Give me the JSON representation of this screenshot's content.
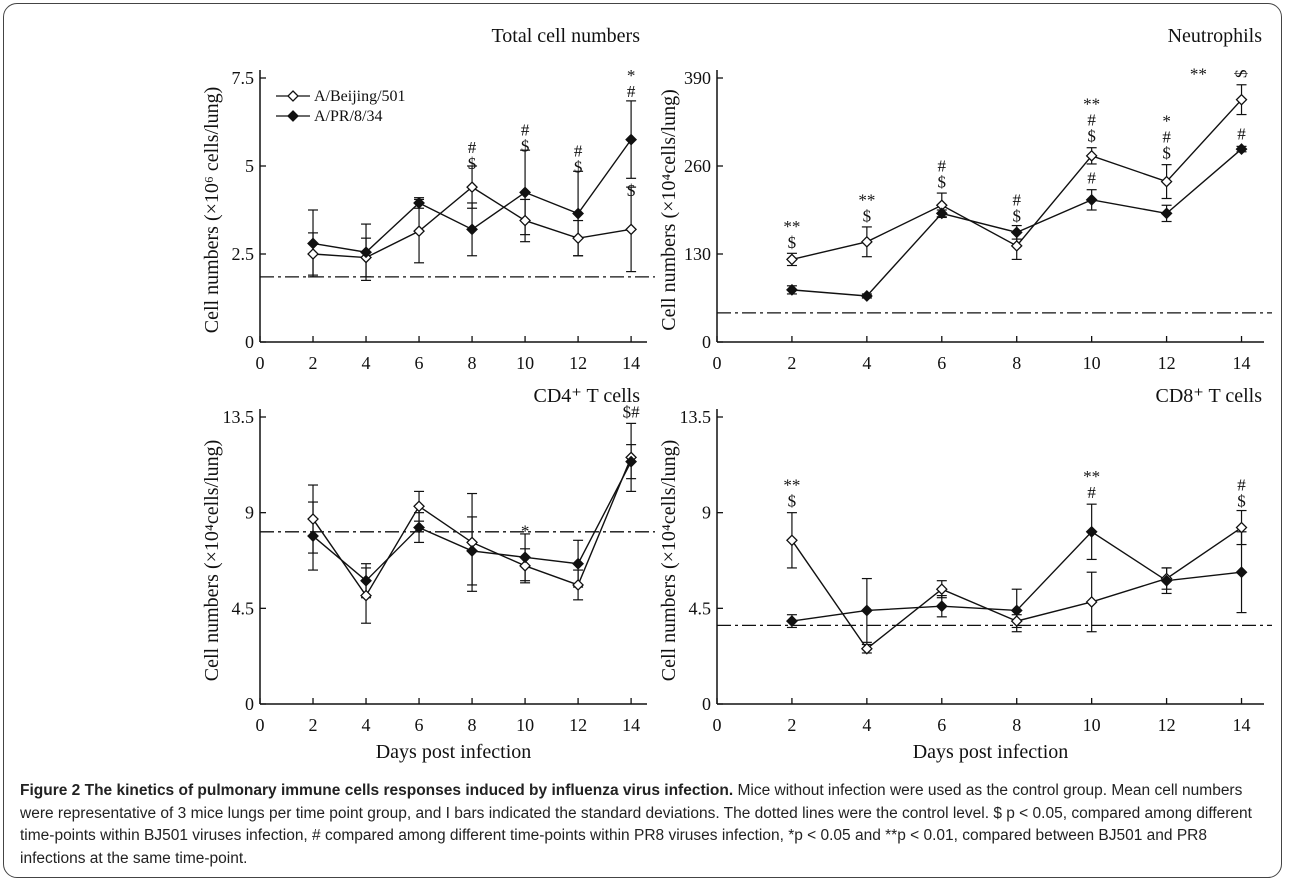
{
  "figure": {
    "caption_bold": "Figure 2 The kinetics of pulmonary immune cells responses induced by influenza virus infection.",
    "caption_rest": " Mice without infection were used as the control group. Mean cell numbers were representative of 3 mice lungs per time point group, and I bars indicated the standard deviations. The dotted lines were the control level. $ p < 0.05, compared among different time-points within BJ501 viruses infection, # compared among different time-points within PR8 viruses infection, *p < 0.05 and **p < 0.01, compared between BJ501 and PR8 infections at the same time-point.",
    "colors": {
      "line": "#111111",
      "open_marker_fill": "#ffffff",
      "control_line": "#111111"
    }
  },
  "chart_data": [
    {
      "type": "line",
      "title": "Total cell numbers",
      "xlabel": "",
      "ylabel": "Cell numbers (×10⁶ cells/lung)",
      "x": [
        2,
        4,
        6,
        8,
        10,
        12,
        14
      ],
      "xticks": [
        "0",
        "2",
        "4",
        "6",
        "8",
        "10",
        "12",
        "14"
      ],
      "ylim": [
        0,
        7.5
      ],
      "yticks": [
        "0",
        "2.5",
        "5",
        "7.5"
      ],
      "legend": [
        "A/Beijing/501",
        "A/PR/8/34"
      ],
      "series": [
        {
          "name": "A/Beijing/501",
          "marker": "open-diamond",
          "values": [
            2.5,
            2.4,
            3.15,
            4.4,
            3.45,
            2.95,
            3.2
          ],
          "err": [
            0.6,
            0.55,
            0.9,
            0.6,
            0.6,
            0.5,
            1.2
          ]
        },
        {
          "name": "A/PR/8/34",
          "marker": "filled-diamond",
          "values": [
            2.8,
            2.55,
            3.95,
            3.2,
            4.25,
            3.65,
            5.75
          ],
          "err": [
            0.95,
            0.8,
            0.15,
            0.75,
            1.2,
            1.2,
            1.1
          ]
        }
      ],
      "control": 1.85,
      "annotations": [
        {
          "x": 8,
          "y": 4.8,
          "labels": [
            "$",
            "#"
          ]
        },
        {
          "x": 10,
          "y": 5.3,
          "labels": [
            "$",
            "#"
          ]
        },
        {
          "x": 12,
          "y": 4.7,
          "labels": [
            "$",
            "#"
          ]
        },
        {
          "x": 14,
          "y": 6.85,
          "labels": [
            "#",
            "*"
          ]
        },
        {
          "x": 14,
          "y": 4.55,
          "labels": [
            "$"
          ],
          "side": "below"
        }
      ]
    },
    {
      "type": "line",
      "title": "Neutrophils",
      "xlabel": "",
      "ylabel": "Cell numbers (×10⁴cells/lung)",
      "x": [
        2,
        4,
        6,
        8,
        10,
        12,
        14
      ],
      "xticks": [
        "0",
        "2",
        "4",
        "6",
        "8",
        "10",
        "12",
        "14"
      ],
      "ylim": [
        0,
        390
      ],
      "yticks": [
        "0",
        "130",
        "260",
        "390"
      ],
      "series": [
        {
          "name": "A/Beijing/501",
          "marker": "open-diamond",
          "values": [
            122,
            148,
            202,
            142,
            275,
            237,
            358
          ],
          "err": [
            9,
            22,
            18,
            20,
            12,
            25,
            22
          ]
        },
        {
          "name": "A/PR/8/34",
          "marker": "filled-diamond",
          "values": [
            77,
            68,
            190,
            162,
            210,
            190,
            285
          ],
          "err": [
            6,
            3,
            5,
            10,
            15,
            12,
            4
          ]
        }
      ],
      "control": 43,
      "annotations": [
        {
          "x": 2,
          "y": 133,
          "labels": [
            "$",
            "**"
          ]
        },
        {
          "x": 4,
          "y": 172,
          "labels": [
            "$",
            "**"
          ]
        },
        {
          "x": 6,
          "y": 222,
          "labels": [
            "$",
            "#"
          ]
        },
        {
          "x": 8,
          "y": 172,
          "labels": [
            "$",
            "#"
          ]
        },
        {
          "x": 10,
          "y": 290,
          "labels": [
            "$",
            "#",
            "**"
          ]
        },
        {
          "x": 12,
          "y": 265,
          "labels": [
            "$",
            "#",
            "*"
          ]
        },
        {
          "x": 12.85,
          "y": 382,
          "labels": [
            "**"
          ]
        },
        {
          "x": 14,
          "y": 383,
          "labels": [
            "$"
          ],
          "rotate": true
        },
        {
          "x": 14,
          "y": 293,
          "labels": [
            "#"
          ]
        },
        {
          "x": 10,
          "y": 228,
          "labels": [
            "#"
          ]
        }
      ]
    },
    {
      "type": "line",
      "title": "CD4⁺ T cells",
      "xlabel": "Days post infection",
      "ylabel": "Cell numbers (×10⁴cells/lung)",
      "x": [
        2,
        4,
        6,
        8,
        10,
        12,
        14
      ],
      "xticks": [
        "0",
        "2",
        "4",
        "6",
        "8",
        "10",
        "12",
        "14"
      ],
      "ylim": [
        0,
        13.5
      ],
      "yticks": [
        "0",
        "4.5",
        "9",
        "13.5"
      ],
      "series": [
        {
          "name": "A/Beijing/501",
          "marker": "open-diamond",
          "values": [
            8.7,
            5.1,
            9.3,
            7.6,
            6.5,
            5.6,
            11.6
          ],
          "err": [
            1.6,
            1.3,
            0.7,
            2.3,
            0.8,
            0.7,
            1.6
          ]
        },
        {
          "name": "A/PR/8/34",
          "marker": "filled-diamond",
          "values": [
            7.9,
            5.8,
            8.3,
            7.2,
            6.9,
            6.6,
            11.4
          ],
          "err": [
            1.6,
            0.8,
            0.7,
            1.6,
            1.1,
            1.1,
            0.8
          ]
        }
      ],
      "control": 8.1,
      "annotations": [
        {
          "x": 10,
          "y": 7.7,
          "labels": [
            "*"
          ]
        },
        {
          "x": 14,
          "y": 13.3,
          "labels": [
            "$#"
          ]
        }
      ]
    },
    {
      "type": "line",
      "title": "CD8⁺ T cells",
      "xlabel": "Days post infection",
      "ylabel": "Cell numbers (×10⁴cells/lung)",
      "x": [
        2,
        4,
        6,
        8,
        10,
        12,
        14
      ],
      "xticks": [
        "0",
        "2",
        "4",
        "6",
        "8",
        "10",
        "12",
        "14"
      ],
      "ylim": [
        0,
        13.5
      ],
      "yticks": [
        "0",
        "4.5",
        "9",
        "13.5"
      ],
      "series": [
        {
          "name": "A/Beijing/501",
          "marker": "open-diamond",
          "values": [
            7.7,
            2.6,
            5.4,
            3.9,
            4.8,
            5.9,
            8.3
          ],
          "err": [
            1.3,
            0.2,
            0.4,
            0.3,
            1.4,
            0.5,
            0.8
          ]
        },
        {
          "name": "A/PR/8/34",
          "marker": "filled-diamond",
          "values": [
            3.9,
            4.4,
            4.6,
            4.4,
            8.1,
            5.8,
            6.2
          ],
          "err": [
            0.3,
            1.5,
            0.5,
            1.0,
            1.3,
            0.6,
            1.9
          ]
        }
      ],
      "control": 3.7,
      "annotations": [
        {
          "x": 2,
          "y": 9.1,
          "labels": [
            "$",
            "**"
          ]
        },
        {
          "x": 10,
          "y": 9.5,
          "labels": [
            "#",
            "**"
          ]
        },
        {
          "x": 14,
          "y": 9.1,
          "labels": [
            "$",
            "#"
          ]
        }
      ]
    }
  ]
}
